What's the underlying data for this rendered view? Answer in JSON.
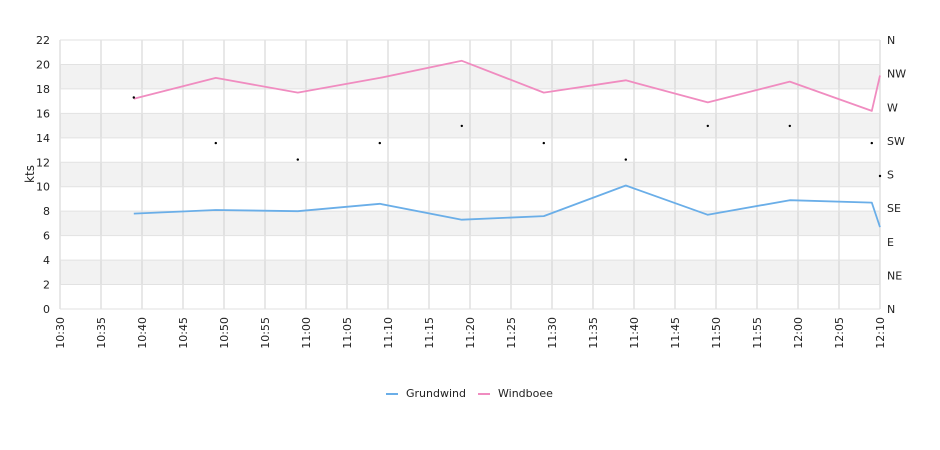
{
  "chart_data": {
    "type": "line",
    "ylabel": "kts",
    "ylim": [
      0,
      22
    ],
    "y_ticks": [
      "0",
      "2",
      "4",
      "6",
      "8",
      "10",
      "12",
      "14",
      "16",
      "18",
      "20",
      "22"
    ],
    "x_ticks": [
      "10:30",
      "10:35",
      "10:40",
      "10:45",
      "10:50",
      "10:55",
      "11:00",
      "11:05",
      "11:10",
      "11:15",
      "11:20",
      "11:25",
      "11:30",
      "11:35",
      "11:40",
      "11:45",
      "11:50",
      "11:55",
      "12:00",
      "12:05",
      "12:10"
    ],
    "xlim": [
      "10:30",
      "12:10"
    ],
    "right_axis": {
      "labels": [
        "N",
        "NE",
        "E",
        "SE",
        "S",
        "SW",
        "W",
        "NW",
        "N"
      ],
      "range_degrees": [
        0,
        360
      ]
    },
    "grid": true,
    "legend_position": "bottom-center",
    "series": [
      {
        "name": "Grundwind",
        "color": "#6aaee8",
        "x": [
          "10:39",
          "10:49",
          "10:59",
          "11:09",
          "11:19",
          "11:29",
          "11:39",
          "11:49",
          "11:59",
          "12:09",
          "12:10"
        ],
        "values": [
          7.8,
          8.1,
          8.0,
          8.6,
          7.3,
          7.6,
          10.1,
          7.7,
          8.9,
          8.7,
          6.7
        ]
      },
      {
        "name": "Windboee",
        "color": "#f08cc0",
        "x": [
          "10:39",
          "10:49",
          "10:59",
          "11:09",
          "11:19",
          "11:29",
          "11:39",
          "11:49",
          "11:59",
          "12:09",
          "12:10"
        ],
        "values": [
          17.2,
          18.9,
          17.7,
          18.9,
          20.3,
          17.7,
          18.7,
          16.9,
          18.6,
          16.2,
          19.1
        ]
      }
    ],
    "direction_points": {
      "color": "#000000",
      "x": [
        "10:39",
        "10:49",
        "10:59",
        "11:09",
        "11:19",
        "11:29",
        "11:39",
        "11:49",
        "11:59",
        "12:09",
        "12:10"
      ],
      "degrees": [
        283,
        222,
        200,
        222,
        245,
        222,
        200,
        245,
        245,
        222,
        178
      ]
    }
  }
}
